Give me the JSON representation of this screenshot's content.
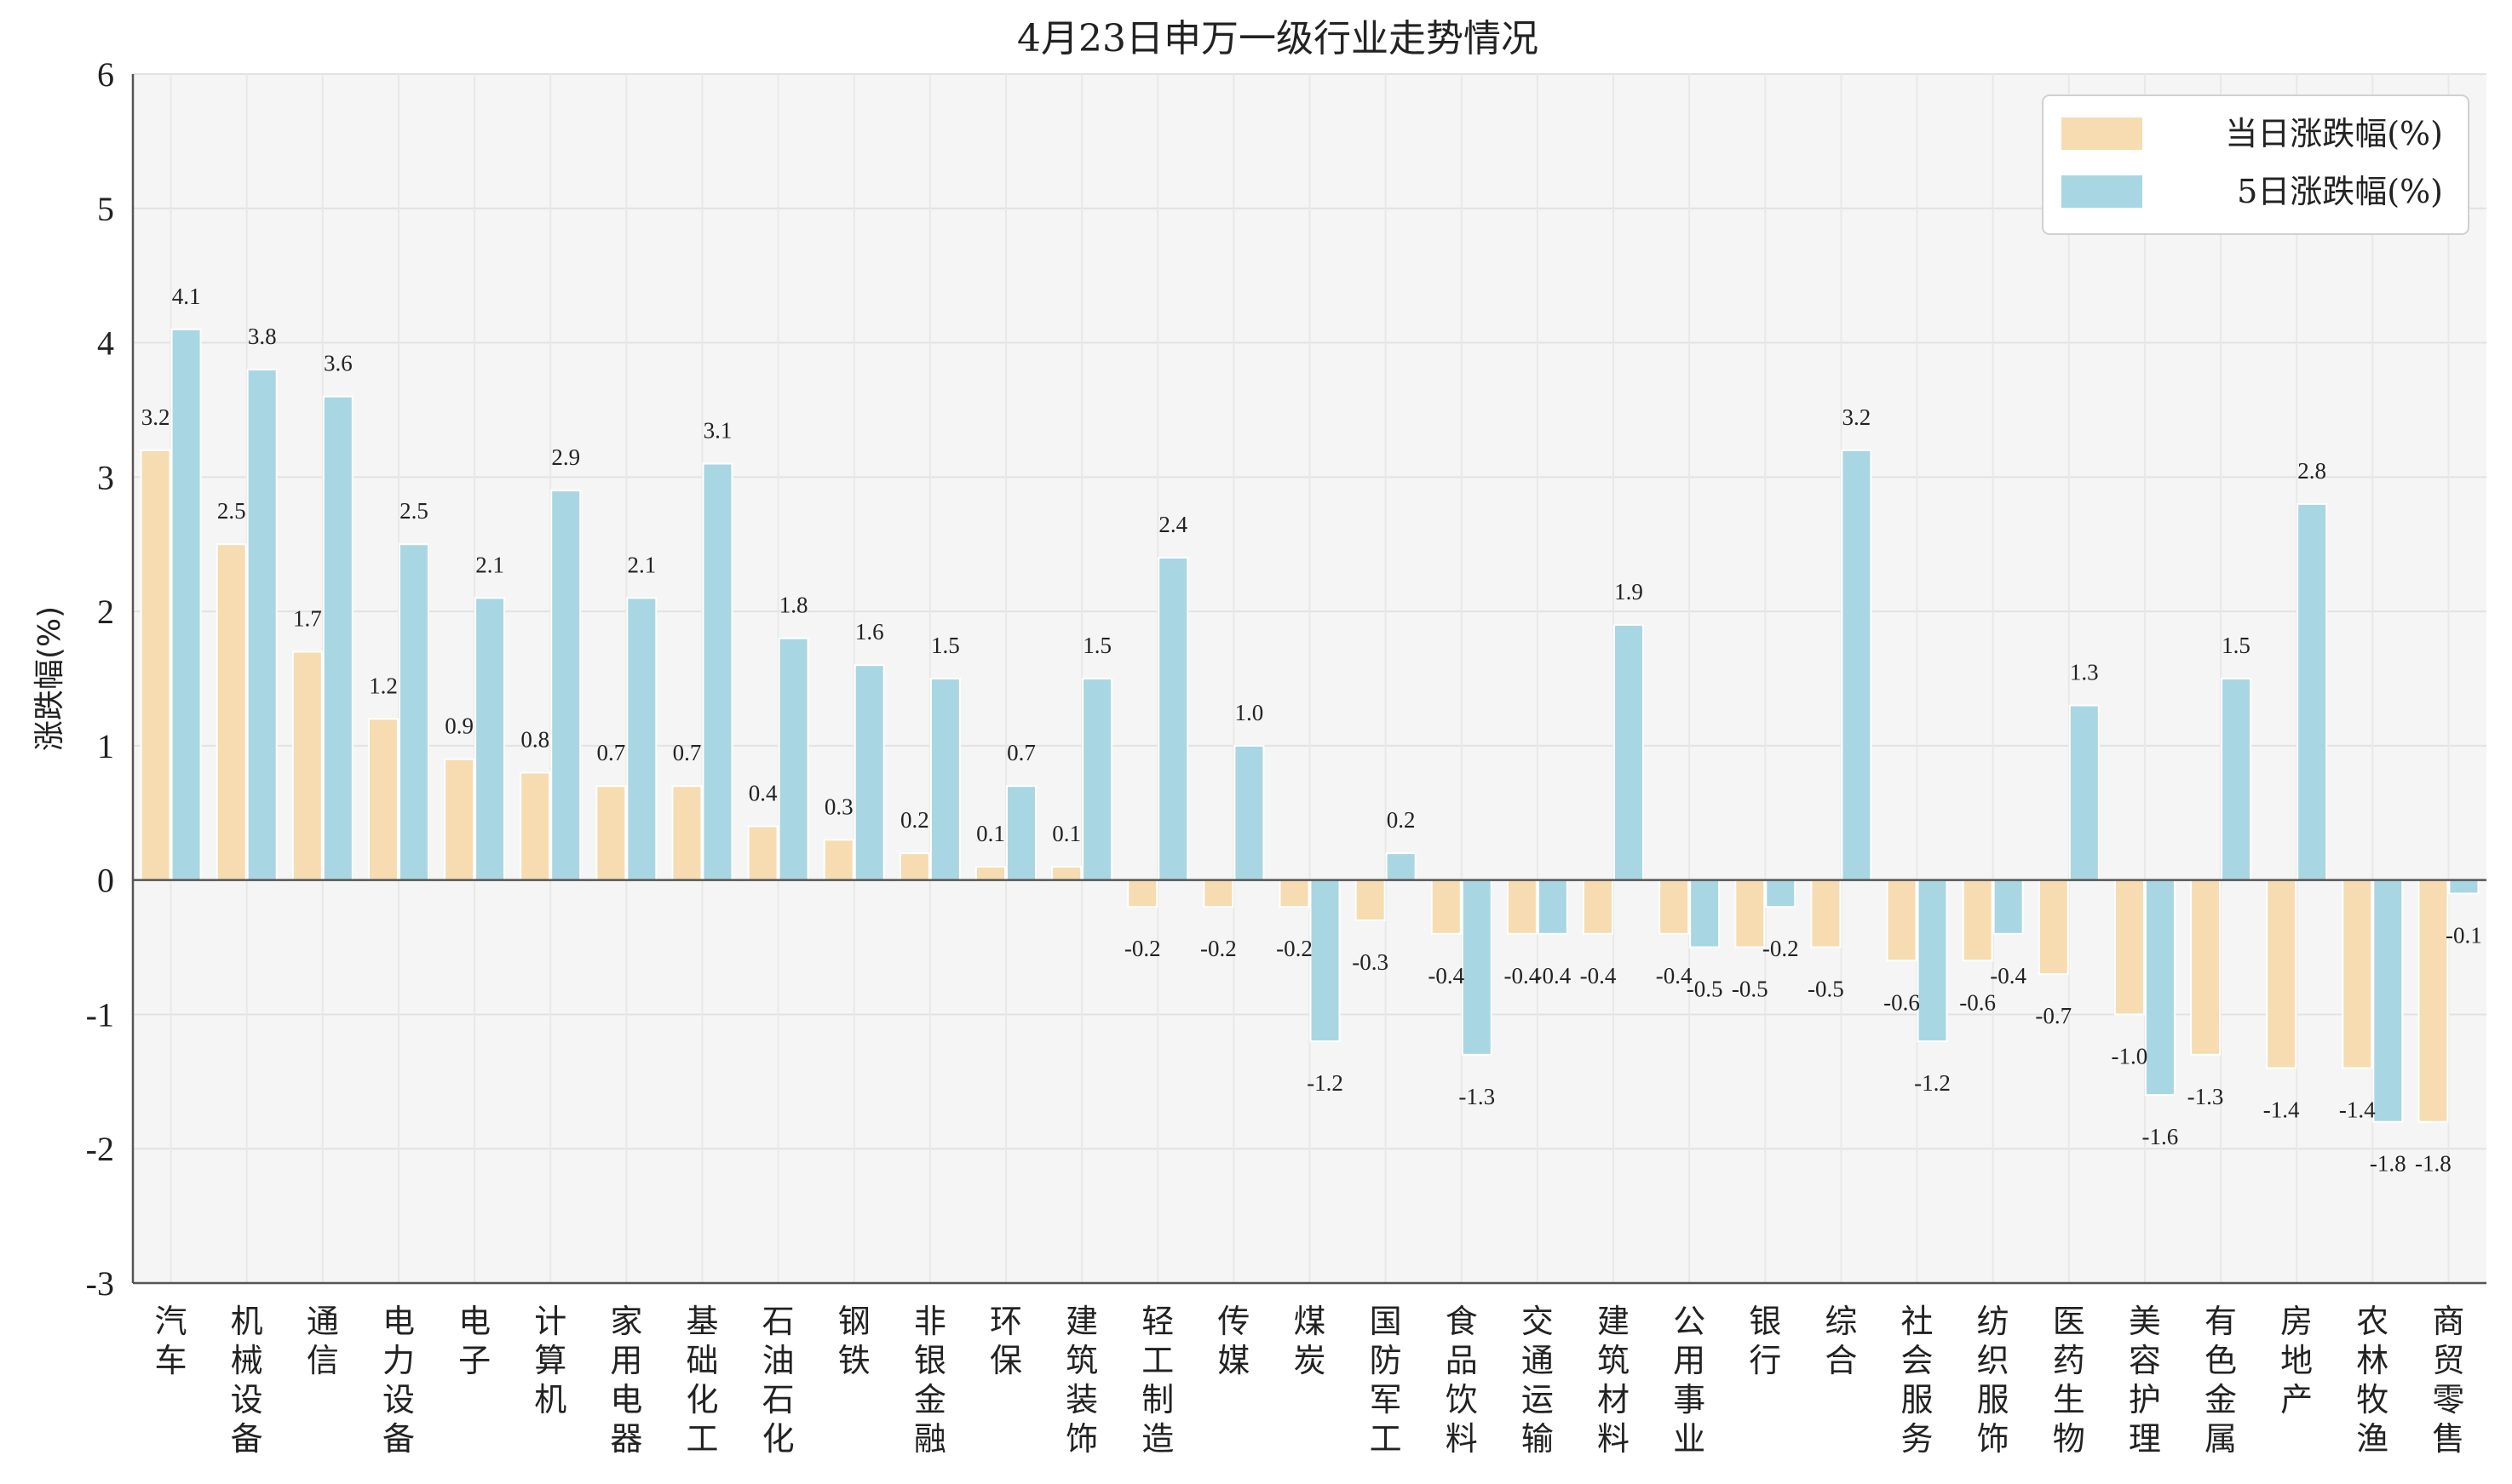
{
  "chart_data": {
    "type": "bar",
    "title": "4月23日申万一级行业走势情况",
    "xlabel": "",
    "ylabel": "涨跌幅(%)",
    "ylim": [
      -3,
      6
    ],
    "yticks": [
      -3,
      -2,
      -1,
      0,
      1,
      2,
      3,
      4,
      5,
      6
    ],
    "grid": true,
    "legend_position": "top-right",
    "categories": [
      "汽车",
      "机械设备",
      "通信",
      "电力设备",
      "电子",
      "计算机",
      "家用电器",
      "基础化工",
      "石油石化",
      "钢铁",
      "非银金融",
      "环保",
      "建筑装饰",
      "轻工制造",
      "传媒",
      "煤炭",
      "国防军工",
      "食品饮料",
      "交通运输",
      "建筑材料",
      "公用事业",
      "银行",
      "综合",
      "社会服务",
      "纺织服饰",
      "医药生物",
      "美容护理",
      "有色金属",
      "房地产",
      "农林牧渔",
      "商贸零售"
    ],
    "series": [
      {
        "name": "当日涨跌幅(%)",
        "color": "#f6dcb0",
        "values": [
          3.2,
          2.5,
          1.7,
          1.2,
          0.9,
          0.8,
          0.7,
          0.7,
          0.4,
          0.3,
          0.2,
          0.1,
          0.1,
          -0.2,
          -0.2,
          -0.2,
          -0.3,
          -0.4,
          -0.4,
          -0.4,
          -0.4,
          -0.5,
          -0.5,
          -0.6,
          -0.6,
          -0.7,
          -1.0,
          -1.3,
          -1.4,
          -1.4,
          -1.8
        ]
      },
      {
        "name": "5日涨跌幅(%)",
        "color": "#a9d6e3",
        "values": [
          4.1,
          3.8,
          3.6,
          2.5,
          2.1,
          2.9,
          2.1,
          3.1,
          1.8,
          1.6,
          1.5,
          0.7,
          1.5,
          2.4,
          1.0,
          -1.2,
          0.2,
          -1.3,
          -0.4,
          1.9,
          -0.5,
          -0.2,
          3.2,
          -1.2,
          -0.4,
          1.3,
          -1.6,
          1.5,
          2.8,
          -1.8,
          -0.1
        ]
      }
    ]
  }
}
